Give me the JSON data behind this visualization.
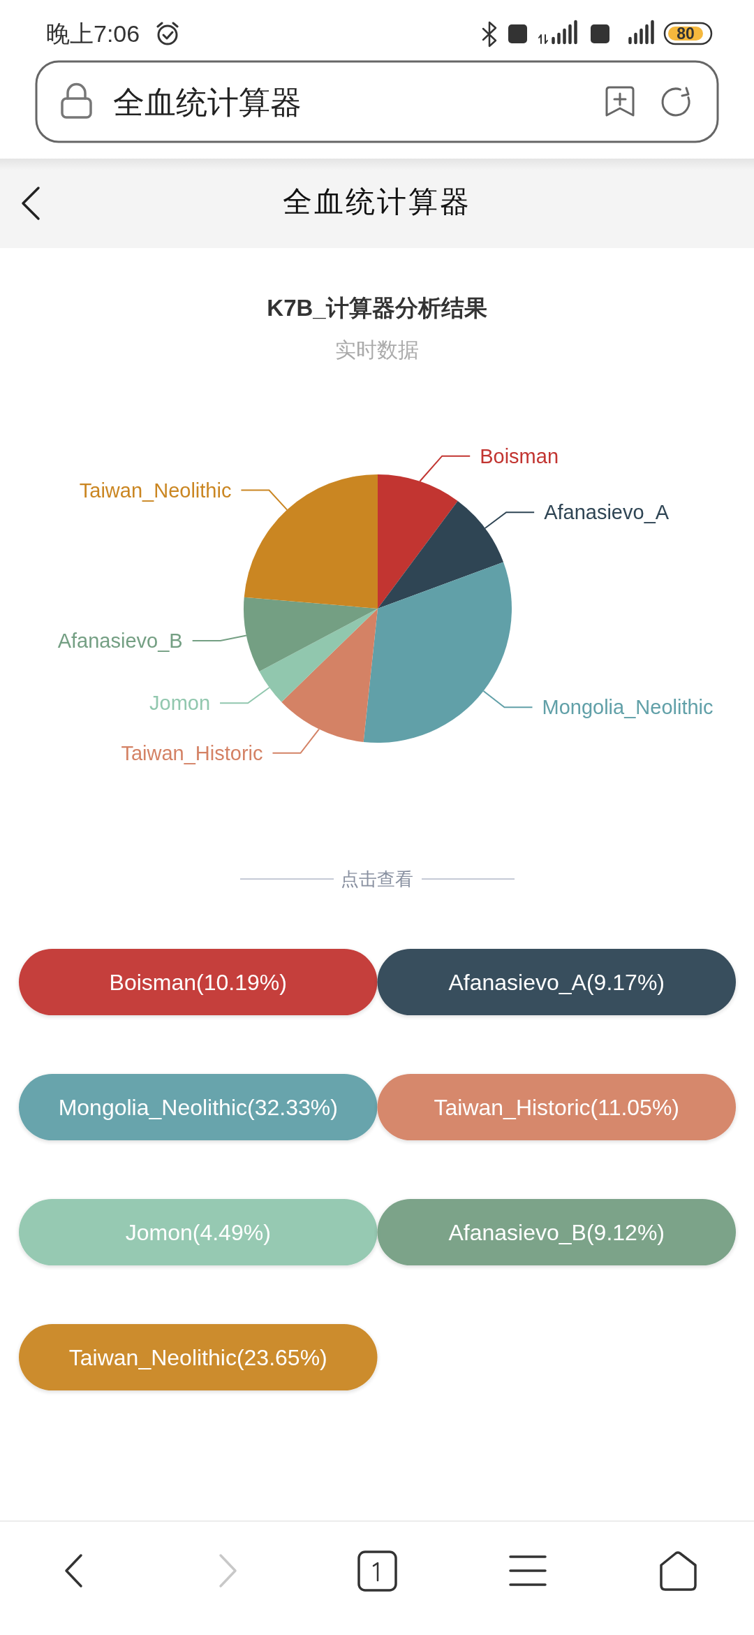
{
  "chart_data": {
    "type": "pie",
    "title": "K7B_计算器分析结果",
    "subtitle": "实时数据",
    "categories": [
      "Boisman",
      "Afanasievo_A",
      "Mongolia_Neolithic",
      "Taiwan_Historic",
      "Jomon",
      "Afanasievo_B",
      "Taiwan_Neolithic"
    ],
    "values": [
      10.19,
      9.17,
      32.33,
      11.05,
      4.49,
      9.12,
      23.65
    ],
    "colors": [
      "#c23531",
      "#2f4554",
      "#61a0a8",
      "#d48265",
      "#91c7ae",
      "#749f83",
      "#ca8622"
    ],
    "annotations": [
      "晚上7:06",
      "80",
      "全血统计算器",
      "全血统计算器",
      "点击查看",
      "Boisman(10.19%)",
      "Afanasievo_A(9.17%)",
      "Mongolia_Neolithic(32.33%)",
      "Taiwan_Historic(11.05%)",
      "Jomon(4.49%)",
      "Afanasievo_B(9.12%)",
      "Taiwan_Neolithic(23.65%)"
    ]
  }
}
